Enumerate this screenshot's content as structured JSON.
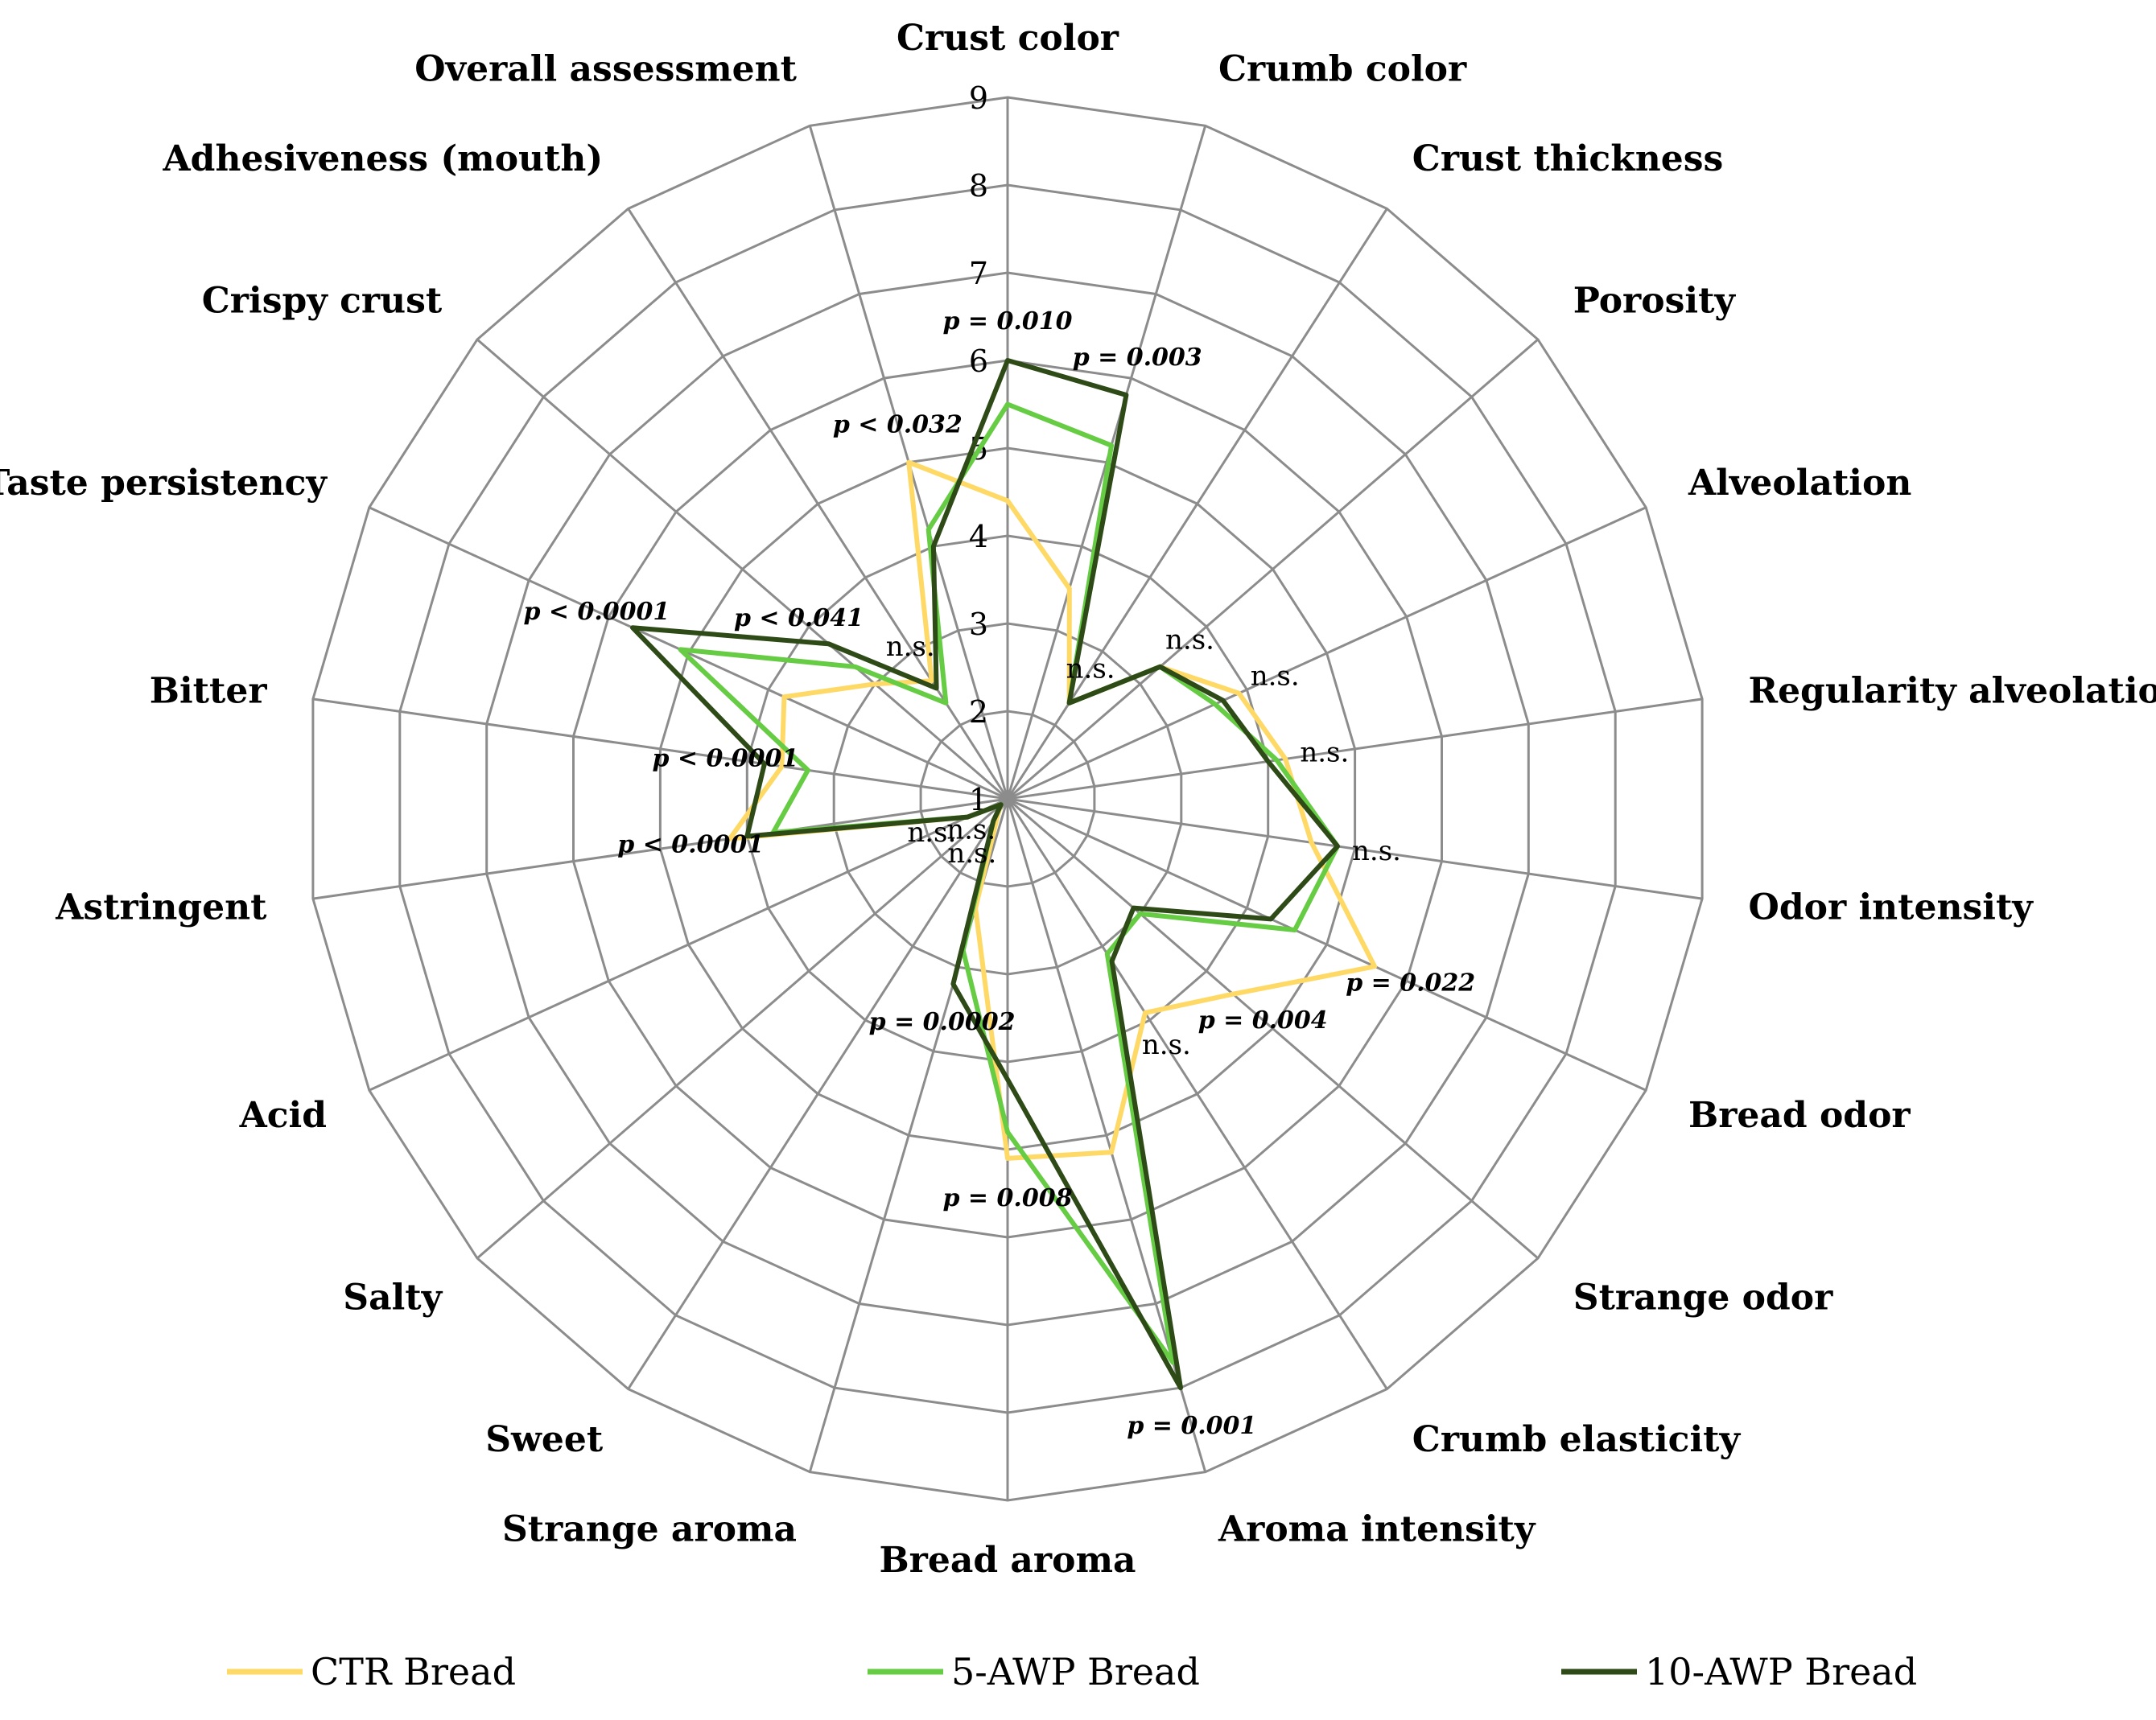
{
  "chart_data": {
    "type": "radar",
    "axes": [
      "Crust color",
      "Crumb color",
      "Crust thickness",
      "Porosity",
      "Alveolation",
      "Regularity alveolation",
      "Odor intensity",
      "Bread odor",
      "Strange odor",
      "Crumb elasticity",
      "Aroma intensity",
      "Bread aroma",
      "Strange aroma",
      "Sweet",
      "Salty",
      "Acid",
      "Astringent",
      "Bitter",
      "Taste persistency",
      "Crispy crust",
      "Adhesiveness (mouth)",
      "Overall assessment"
    ],
    "rlim": [
      1,
      9
    ],
    "ticks": [
      "1",
      "2",
      "3",
      "4",
      "5",
      "6",
      "7",
      "8",
      "9"
    ],
    "grid": true,
    "legend_position": "bottom",
    "series": [
      {
        "name": "CTR Bread",
        "color": "#ffd966",
        "values": [
          4.4,
          3.5,
          2.3,
          3.3,
          3.9,
          4.2,
          4.5,
          5.6,
          4.4,
          3.9,
          5.2,
          5.1,
          2.3,
          1.2,
          1.1,
          1.5,
          4.2,
          3.6,
          3.8,
          3.0,
          2.6,
          5.0
        ]
      },
      {
        "name": "5-AWP Bread",
        "color": "#66cc44",
        "values": [
          5.5,
          5.2,
          2.3,
          3.3,
          3.6,
          4.1,
          4.8,
          4.6,
          3.0,
          3.1,
          7.7,
          4.8,
          2.8,
          1.3,
          1.1,
          1.5,
          3.7,
          3.3,
          5.1,
          3.3,
          2.3,
          4.2
        ]
      },
      {
        "name": "10-AWP Bread",
        "color": "#2d4a17",
        "values": [
          6.0,
          5.8,
          2.3,
          3.3,
          3.7,
          4.0,
          4.8,
          4.3,
          2.9,
          3.2,
          8.0,
          4.2,
          3.2,
          1.3,
          1.1,
          1.5,
          4.0,
          3.8,
          5.7,
          3.7,
          2.5,
          4.0
        ]
      }
    ],
    "annotations": [
      {
        "axis": "Crust color",
        "text": "p = 0.010",
        "sig": true
      },
      {
        "axis": "Crumb color",
        "text": "p = 0.003",
        "sig": true
      },
      {
        "axis": "Crust thickness",
        "text": "n.s.",
        "sig": false
      },
      {
        "axis": "Porosity",
        "text": "n.s.",
        "sig": false
      },
      {
        "axis": "Alveolation",
        "text": "n.s.",
        "sig": false
      },
      {
        "axis": "Regularity alveolation",
        "text": "n.s.",
        "sig": false
      },
      {
        "axis": "Odor intensity",
        "text": "n.s.",
        "sig": false
      },
      {
        "axis": "Bread odor",
        "text": "p = 0.022",
        "sig": true
      },
      {
        "axis": "Strange odor",
        "text": "p = 0.004",
        "sig": true
      },
      {
        "axis": "Crumb elasticity",
        "text": "n.s.",
        "sig": false
      },
      {
        "axis": "Aroma intensity",
        "text": "p = 0.001",
        "sig": true
      },
      {
        "axis": "Bread aroma",
        "text": "p = 0.008",
        "sig": true
      },
      {
        "axis": "Strange aroma",
        "text": "p = 0.0002",
        "sig": true
      },
      {
        "axis": "Sweet",
        "text": "n.s.",
        "sig": false
      },
      {
        "axis": "Salty",
        "text": "n.s.",
        "sig": false
      },
      {
        "axis": "Acid",
        "text": "n.s.",
        "sig": false
      },
      {
        "axis": "Astringent",
        "text": "p < 0.0001",
        "sig": true
      },
      {
        "axis": "Bitter",
        "text": "p < 0.0001",
        "sig": true
      },
      {
        "axis": "Taste persistency",
        "text": "p < 0.0001",
        "sig": true
      },
      {
        "axis": "Crispy crust",
        "text": "p < 0.041",
        "sig": true
      },
      {
        "axis": "Adhesiveness (mouth)",
        "text": "n.s.",
        "sig": false
      },
      {
        "axis": "Overall assessment",
        "text": "p < 0.032",
        "sig": true
      }
    ]
  }
}
